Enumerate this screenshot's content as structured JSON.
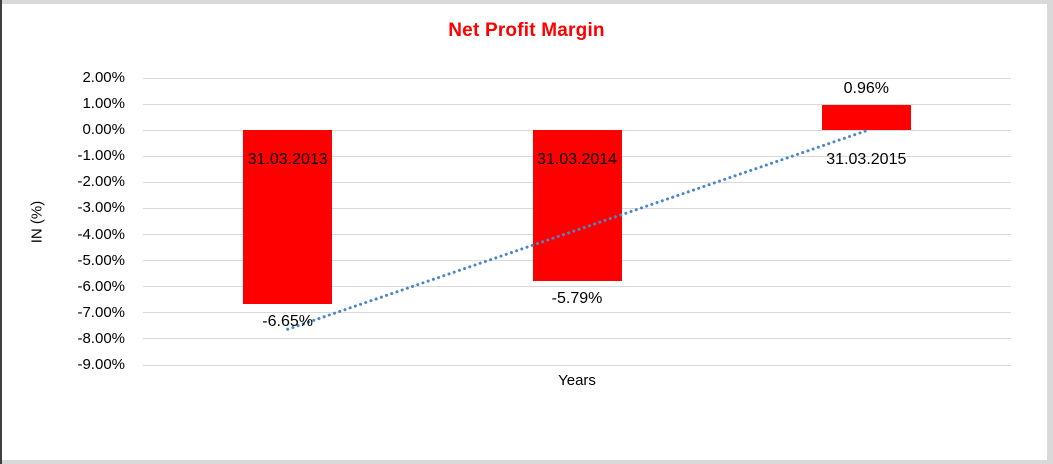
{
  "chart_data": {
    "type": "bar",
    "title": "Net Profit Margin",
    "title_color": "#FF0000",
    "xlabel": "Years",
    "ylabel": "IN (%)",
    "categories": [
      "31.03.2013",
      "31.03.2014",
      "31.03.2015"
    ],
    "values": [
      -6.65,
      -5.79,
      0.96
    ],
    "value_labels": [
      "-6.65%",
      "-5.79%",
      "0.96%"
    ],
    "bar_color": "#FF0000",
    "ylim": [
      -9,
      2
    ],
    "yticks": [
      2,
      1,
      0,
      -1,
      -2,
      -3,
      -4,
      -5,
      -6,
      -7,
      -8,
      -9
    ],
    "ytick_labels": [
      "2.00%",
      "1.00%",
      "0.00%",
      "-1.00%",
      "-2.00%",
      "-3.00%",
      "-4.00%",
      "-5.00%",
      "-6.00%",
      "-7.00%",
      "-8.00%",
      "-9.00%"
    ],
    "grid": true,
    "gridline_color": "#D9D9D9",
    "legend": "none",
    "trendline": {
      "type": "linear",
      "style": "dotted",
      "color": "#4A86C8"
    }
  }
}
